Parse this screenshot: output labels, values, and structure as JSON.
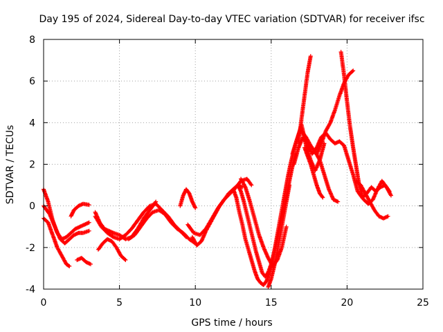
{
  "chart_data": {
    "type": "scatter",
    "title": "Day 195 of 2024, Sidereal Day-to-day VTEC variation (SDTVAR) for receiver ifsc",
    "xlabel": "GPS time / hours",
    "ylabel": "SDTVAR / TECUs",
    "xlim": [
      0,
      25
    ],
    "ylim": [
      -4,
      8
    ],
    "xticks": [
      0,
      5,
      10,
      15,
      20,
      25
    ],
    "yticks": [
      -4,
      -2,
      0,
      2,
      4,
      6,
      8
    ],
    "grid": true,
    "marker": "+",
    "series": [
      {
        "name": "SDTVAR",
        "color": "#ff0000",
        "traces": [
          {
            "x": [
              0.0,
              0.3,
              0.6,
              0.9,
              1.2,
              1.5,
              1.8,
              2.1,
              2.4,
              2.7,
              3.0
            ],
            "y": [
              0.8,
              0.2,
              -0.7,
              -1.3,
              -1.6,
              -1.5,
              -1.3,
              -1.1,
              -1.0,
              -0.9,
              -0.8
            ]
          },
          {
            "x": [
              0.0,
              0.3,
              0.6,
              0.9,
              1.2,
              1.5,
              1.7
            ],
            "y": [
              -0.6,
              -0.8,
              -1.4,
              -2.0,
              -2.4,
              -2.8,
              -2.9
            ]
          },
          {
            "x": [
              0.0,
              0.4,
              0.8,
              1.1,
              1.4,
              1.7,
              2.0,
              2.3,
              2.6,
              3.0
            ],
            "y": [
              0.0,
              -0.4,
              -1.1,
              -1.6,
              -1.8,
              -1.6,
              -1.4,
              -1.3,
              -1.3,
              -1.2
            ]
          },
          {
            "x": [
              1.8,
              2.0,
              2.3,
              2.6,
              3.0
            ],
            "y": [
              -0.5,
              -0.2,
              0.0,
              0.1,
              0.05
            ]
          },
          {
            "x": [
              2.2,
              2.5,
              2.8,
              3.1
            ],
            "y": [
              -2.6,
              -2.5,
              -2.7,
              -2.8
            ]
          },
          {
            "x": [
              3.4,
              3.7,
              4.0,
              4.3,
              4.6
            ],
            "y": [
              -0.3,
              -0.8,
              -1.1,
              -1.2,
              -1.3
            ]
          },
          {
            "x": [
              3.6,
              3.9,
              4.2,
              4.5,
              4.8,
              5.1,
              5.4
            ],
            "y": [
              -2.1,
              -1.8,
              -1.6,
              -1.7,
              -2.0,
              -2.4,
              -2.6
            ]
          },
          {
            "x": [
              3.4,
              3.8,
              4.2,
              4.6,
              5.0,
              5.4,
              5.8,
              6.2,
              6.6,
              7.0,
              7.4,
              7.8,
              8.2,
              8.6,
              9.0,
              9.4
            ],
            "y": [
              -0.5,
              -1.0,
              -1.3,
              -1.5,
              -1.6,
              -1.4,
              -1.1,
              -0.7,
              -0.3,
              0.0,
              0.1,
              -0.2,
              -0.5,
              -0.9,
              -1.2,
              -1.5
            ]
          },
          {
            "x": [
              4.6,
              5.0,
              5.4,
              5.8,
              6.2,
              6.6,
              7.0,
              7.4
            ],
            "y": [
              -1.3,
              -1.4,
              -1.6,
              -1.5,
              -1.1,
              -0.6,
              -0.2,
              0.2
            ]
          },
          {
            "x": [
              5.6,
              6.0,
              6.4,
              6.8,
              7.2,
              7.6,
              8.0,
              8.4,
              8.8,
              9.2,
              9.6,
              10.0
            ],
            "y": [
              -1.6,
              -1.4,
              -1.0,
              -0.6,
              -0.3,
              -0.2,
              -0.4,
              -0.8,
              -1.1,
              -1.3,
              -1.6,
              -1.8
            ]
          },
          {
            "x": [
              9.0,
              9.2,
              9.4,
              9.6,
              9.8,
              10.0
            ],
            "y": [
              0.0,
              0.5,
              0.8,
              0.6,
              0.2,
              -0.1
            ]
          },
          {
            "x": [
              9.8,
              10.1,
              10.4,
              10.7,
              11.0,
              11.3,
              11.6,
              11.9,
              12.2,
              12.5,
              12.8,
              13.1
            ],
            "y": [
              -1.5,
              -1.9,
              -1.7,
              -1.2,
              -0.8,
              -0.4,
              0.0,
              0.3,
              0.6,
              0.8,
              1.0,
              0.9
            ]
          },
          {
            "x": [
              9.5,
              9.9,
              10.3,
              10.7,
              11.1,
              11.5,
              11.9,
              12.3,
              12.7,
              13.0,
              13.4,
              13.7
            ],
            "y": [
              -0.9,
              -1.3,
              -1.4,
              -1.1,
              -0.6,
              -0.1,
              0.3,
              0.6,
              0.9,
              1.2,
              1.3,
              1.0
            ]
          },
          {
            "x": [
              12.5,
              12.7,
              12.9,
              13.1,
              13.3,
              13.5,
              13.7,
              13.9,
              14.1,
              14.3,
              14.5,
              14.7,
              14.9,
              15.1,
              15.3,
              15.5,
              15.7,
              15.9,
              16.1,
              16.3,
              16.5,
              16.7,
              16.9
            ],
            "y": [
              0.8,
              0.4,
              -0.3,
              -0.9,
              -1.6,
              -2.1,
              -2.6,
              -3.1,
              -3.5,
              -3.7,
              -3.8,
              -3.6,
              -3.2,
              -2.6,
              -1.8,
              -1.0,
              -0.2,
              0.6,
              1.4,
              2.1,
              2.7,
              3.2,
              3.6
            ]
          },
          {
            "x": [
              12.8,
              13.0,
              13.2,
              13.4,
              13.6,
              13.8,
              14.0,
              14.2,
              14.4,
              14.6,
              14.8,
              15.0,
              15.2,
              15.4,
              15.6,
              15.8,
              16.0,
              16.2,
              16.4,
              16.6
            ],
            "y": [
              1.0,
              0.7,
              0.2,
              -0.4,
              -1.0,
              -1.6,
              -2.2,
              -2.7,
              -3.2,
              -3.4,
              -3.2,
              -2.8,
              -2.2,
              -1.6,
              -0.9,
              -0.2,
              0.5,
              1.2,
              1.9,
              2.5
            ]
          },
          {
            "x": [
              13.0,
              13.3,
              13.6,
              13.9,
              14.2,
              14.5,
              14.8,
              15.1,
              15.4,
              15.7,
              16.0
            ],
            "y": [
              1.3,
              0.9,
              0.2,
              -0.6,
              -1.4,
              -2.0,
              -2.5,
              -2.9,
              -2.6,
              -2.0,
              -1.0
            ]
          },
          {
            "x": [
              14.8,
              15.0,
              15.2,
              15.4,
              15.6,
              15.8,
              16.0,
              16.2
            ],
            "y": [
              -3.9,
              -3.5,
              -2.9,
              -2.2,
              -1.4,
              -0.6,
              0.2,
              1.0
            ]
          },
          {
            "x": [
              16.5,
              16.8,
              17.1,
              17.4,
              17.7,
              18.0,
              18.3,
              18.6,
              18.9,
              19.2,
              19.5,
              19.8,
              20.1,
              20.4,
              20.7,
              21.0,
              21.3,
              21.6,
              21.9,
              22.2,
              22.5,
              22.8
            ],
            "y": [
              2.0,
              2.8,
              3.3,
              3.0,
              2.5,
              2.8,
              3.3,
              3.5,
              3.2,
              3.0,
              3.1,
              2.9,
              2.2,
              1.5,
              0.7,
              0.4,
              0.6,
              0.9,
              0.7,
              0.9,
              1.0,
              0.7
            ]
          },
          {
            "x": [
              16.4,
              16.7,
              17.0,
              17.3,
              17.6,
              17.9,
              18.2,
              18.5
            ],
            "y": [
              2.5,
              3.2,
              3.9,
              2.9,
              2.2,
              1.7,
              2.2,
              3.0
            ]
          },
          {
            "x": [
              16.8,
              17.0,
              17.2,
              17.4,
              17.6
            ],
            "y": [
              3.0,
              4.2,
              5.3,
              6.4,
              7.2
            ]
          },
          {
            "x": [
              17.2,
              17.4,
              17.6,
              17.8,
              18.0,
              18.2,
              18.4
            ],
            "y": [
              2.8,
              2.4,
              2.0,
              1.5,
              1.0,
              0.6,
              0.4
            ]
          },
          {
            "x": [
              17.0,
              17.3,
              17.6,
              17.9,
              18.2,
              18.5,
              18.8,
              19.1,
              19.4
            ],
            "y": [
              3.6,
              3.3,
              2.9,
              2.6,
              2.2,
              1.5,
              0.8,
              0.3,
              0.2
            ]
          },
          {
            "x": [
              18.0,
              18.3,
              18.6,
              18.9,
              19.2,
              19.5,
              19.8,
              20.1,
              20.4
            ],
            "y": [
              2.5,
              3.0,
              3.6,
              4.0,
              4.6,
              5.3,
              5.9,
              6.3,
              6.5
            ]
          },
          {
            "x": [
              19.6,
              19.8,
              20.0,
              20.2,
              20.4,
              20.6,
              20.8,
              21.0
            ],
            "y": [
              7.4,
              6.3,
              5.0,
              3.8,
              2.8,
              1.9,
              1.0,
              0.5
            ]
          },
          {
            "x": [
              20.6,
              20.9,
              21.2,
              21.5,
              21.8,
              22.1,
              22.4,
              22.7
            ],
            "y": [
              1.2,
              1.0,
              0.6,
              0.2,
              -0.2,
              -0.5,
              -0.6,
              -0.5
            ]
          },
          {
            "x": [
              20.8,
              21.1,
              21.4,
              21.7,
              22.0,
              22.3,
              22.6,
              22.9
            ],
            "y": [
              0.6,
              0.3,
              0.1,
              0.3,
              0.8,
              1.2,
              0.9,
              0.5
            ]
          }
        ]
      }
    ]
  }
}
